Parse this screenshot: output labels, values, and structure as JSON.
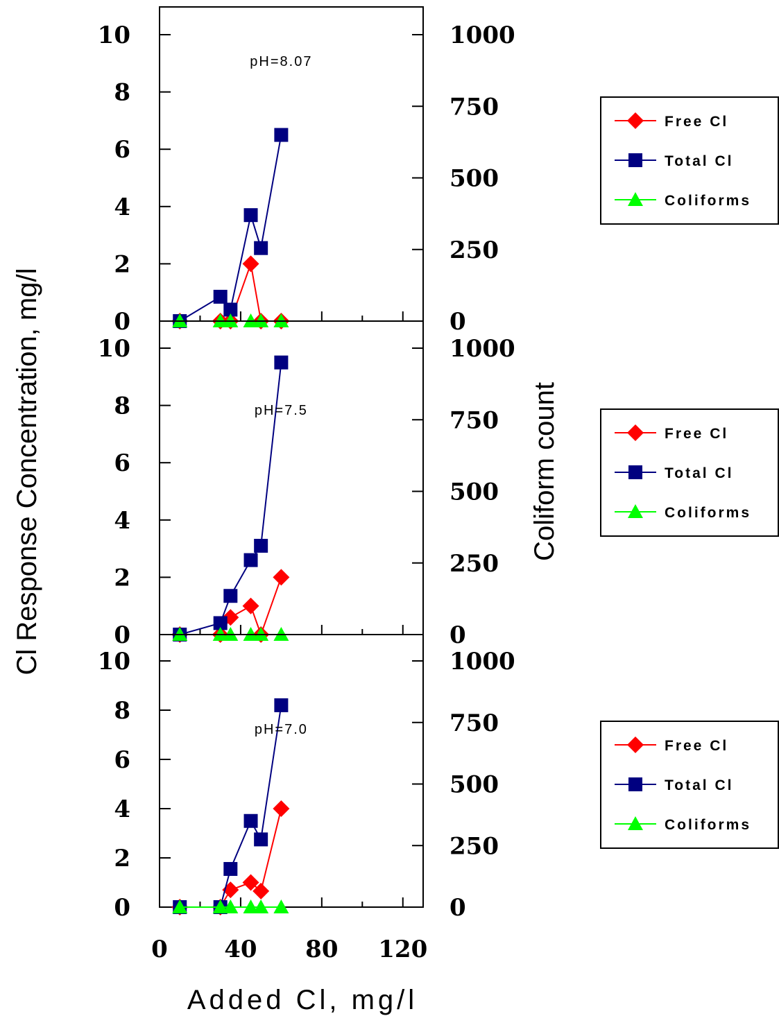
{
  "chart_data": {
    "type": "line",
    "xlabel": "Added Cl, mg/l",
    "ylabel_left": "Cl Response Concentration, mg/l",
    "ylabel_right": "Coliform count",
    "x_ticks": [
      "0",
      "40",
      "80",
      "120"
    ],
    "xlim": [
      0,
      130
    ],
    "y_left_ticks": [
      "0",
      "2",
      "4",
      "6",
      "8",
      "10"
    ],
    "y_left_lim": [
      0,
      11
    ],
    "y_right_ticks": [
      "0",
      "250",
      "500",
      "750",
      "1000"
    ],
    "y_right_lim": [
      0,
      1100
    ],
    "legend_labels": [
      "Free Cl",
      "Total Cl",
      "Coliforms"
    ],
    "colors": {
      "free": "#ff0000",
      "total": "#000080",
      "coliforms": "#00ff00"
    },
    "panels": [
      {
        "annotation": "pH=8.07",
        "series": [
          {
            "name": "Free Cl",
            "points": [
              [
                10,
                0
              ],
              [
                30,
                0
              ],
              [
                35,
                0
              ],
              [
                45,
                2.0
              ],
              [
                50,
                0
              ],
              [
                60,
                0
              ]
            ]
          },
          {
            "name": "Total Cl",
            "points": [
              [
                10,
                0
              ],
              [
                30,
                0.85
              ],
              [
                35,
                0.4
              ],
              [
                45,
                3.7
              ],
              [
                50,
                2.55
              ],
              [
                60,
                6.5
              ]
            ]
          },
          {
            "name": "Coliforms",
            "points": [
              [
                10,
                0
              ],
              [
                30,
                0
              ],
              [
                35,
                0
              ],
              [
                45,
                0
              ],
              [
                50,
                0
              ],
              [
                60,
                0
              ]
            ]
          }
        ]
      },
      {
        "annotation": "pH=7.5",
        "series": [
          {
            "name": "Free Cl",
            "points": [
              [
                10,
                0
              ],
              [
                30,
                0
              ],
              [
                35,
                0.6
              ],
              [
                45,
                1.0
              ],
              [
                50,
                0
              ],
              [
                60,
                2.0
              ]
            ]
          },
          {
            "name": "Total Cl",
            "points": [
              [
                10,
                0
              ],
              [
                30,
                0.4
              ],
              [
                35,
                1.35
              ],
              [
                45,
                2.6
              ],
              [
                50,
                3.1
              ],
              [
                60,
                9.5
              ]
            ]
          },
          {
            "name": "Coliforms",
            "points": [
              [
                10,
                0
              ],
              [
                30,
                0
              ],
              [
                35,
                0
              ],
              [
                45,
                0
              ],
              [
                50,
                0
              ],
              [
                60,
                0
              ]
            ]
          }
        ]
      },
      {
        "annotation": "pH=7.0",
        "series": [
          {
            "name": "Free Cl",
            "points": [
              [
                10,
                0
              ],
              [
                30,
                0
              ],
              [
                35,
                0.7
              ],
              [
                45,
                1.0
              ],
              [
                50,
                0.65
              ],
              [
                60,
                4.0
              ]
            ]
          },
          {
            "name": "Total Cl",
            "points": [
              [
                10,
                0
              ],
              [
                30,
                0
              ],
              [
                35,
                1.55
              ],
              [
                45,
                3.5
              ],
              [
                50,
                2.75
              ],
              [
                60,
                8.2
              ]
            ]
          },
          {
            "name": "Coliforms",
            "points": [
              [
                10,
                0
              ],
              [
                30,
                0
              ],
              [
                35,
                0
              ],
              [
                45,
                0
              ],
              [
                50,
                0
              ],
              [
                60,
                0
              ]
            ]
          }
        ]
      }
    ]
  }
}
